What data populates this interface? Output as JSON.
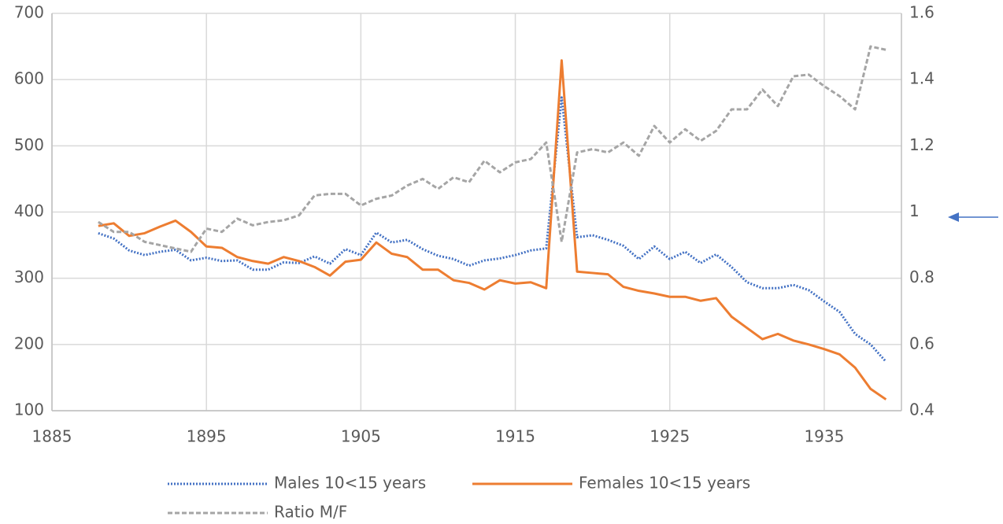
{
  "chart_data": {
    "type": "line",
    "x": [
      1888,
      1889,
      1890,
      1891,
      1892,
      1893,
      1894,
      1895,
      1896,
      1897,
      1898,
      1899,
      1900,
      1901,
      1902,
      1903,
      1904,
      1905,
      1906,
      1907,
      1908,
      1909,
      1910,
      1911,
      1912,
      1913,
      1914,
      1915,
      1916,
      1917,
      1918,
      1919,
      1920,
      1921,
      1922,
      1923,
      1924,
      1925,
      1926,
      1927,
      1928,
      1929,
      1930,
      1931,
      1932,
      1933,
      1934,
      1935,
      1936,
      1937,
      1938,
      1939
    ],
    "series": [
      {
        "name": "Males 10<15 years",
        "color": "#4472c4",
        "dash": "dotted",
        "values": [
          368,
          360,
          342,
          335,
          340,
          343,
          327,
          331,
          326,
          327,
          313,
          313,
          324,
          323,
          333,
          322,
          344,
          335,
          369,
          354,
          358,
          344,
          334,
          329,
          319,
          327,
          330,
          335,
          342,
          345,
          573,
          362,
          365,
          358,
          349,
          329,
          348,
          329,
          340,
          323,
          336,
          317,
          294,
          285,
          285,
          290,
          282,
          265,
          249,
          216,
          200,
          174
        ]
      },
      {
        "name": "Females 10<15 years",
        "color": "#ed7d31",
        "dash": "solid",
        "values": [
          379,
          383,
          364,
          368,
          378,
          387,
          370,
          348,
          346,
          332,
          326,
          322,
          332,
          326,
          317,
          304,
          325,
          328,
          354,
          337,
          332,
          313,
          313,
          297,
          293,
          283,
          297,
          292,
          294,
          285,
          629,
          310,
          308,
          306,
          287,
          281,
          277,
          272,
          272,
          266,
          270,
          242,
          225,
          208,
          216,
          206,
          200,
          193,
          185,
          165,
          133,
          117
        ]
      },
      {
        "name": "Ratio M/F",
        "color": "#a5a5a5",
        "dash": "dashed",
        "axis": "y2",
        "values": [
          0.97,
          0.94,
          0.94,
          0.91,
          0.9,
          0.89,
          0.88,
          0.95,
          0.94,
          0.98,
          0.96,
          0.97,
          0.975,
          0.99,
          1.05,
          1.055,
          1.055,
          1.02,
          1.04,
          1.05,
          1.08,
          1.1,
          1.07,
          1.105,
          1.09,
          1.155,
          1.12,
          1.15,
          1.16,
          1.21,
          0.91,
          1.18,
          1.19,
          1.18,
          1.21,
          1.17,
          1.26,
          1.21,
          1.25,
          1.215,
          1.245,
          1.31,
          1.31,
          1.37,
          1.32,
          1.41,
          1.415,
          1.38,
          1.35,
          1.31,
          1.5,
          1.49
        ]
      }
    ],
    "xlim": [
      1885,
      1940
    ],
    "xticks": [
      1885,
      1895,
      1905,
      1915,
      1925,
      1935
    ],
    "ylim": [
      100,
      700
    ],
    "yticks": [
      100,
      200,
      300,
      400,
      500,
      600,
      700
    ],
    "y2lim": [
      0.4,
      1.6
    ],
    "y2ticks": [
      0.4,
      0.6,
      0.8,
      1,
      1.2,
      1.4,
      1.6
    ],
    "grid": true,
    "legend": "bottom"
  }
}
